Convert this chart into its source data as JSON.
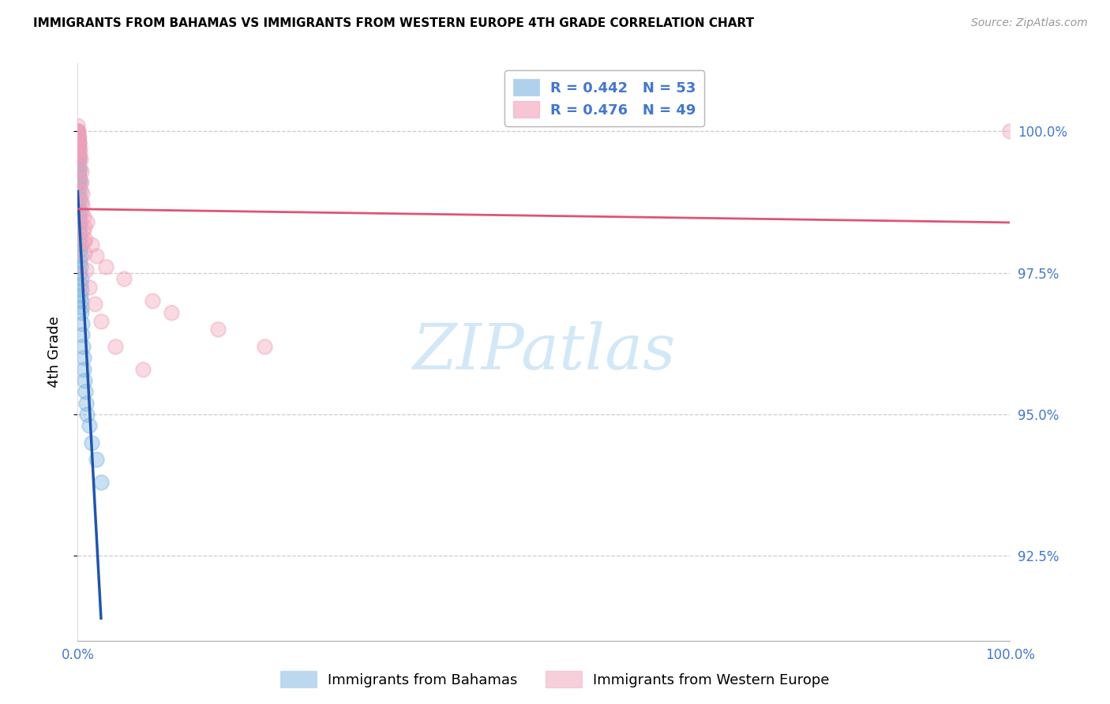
{
  "title": "IMMIGRANTS FROM BAHAMAS VS IMMIGRANTS FROM WESTERN EUROPE 4TH GRADE CORRELATION CHART",
  "source": "Source: ZipAtlas.com",
  "ylabel": "4th Grade",
  "watermark_text": "ZIPatlas",
  "legend_r1": "R = 0.442",
  "legend_n1": "N = 53",
  "legend_r2": "R = 0.476",
  "legend_n2": "N = 49",
  "legend_label1": "Immigrants from Bahamas",
  "legend_label2": "Immigrants from Western Europe",
  "yticks": [
    92.5,
    95.0,
    97.5,
    100.0
  ],
  "ymin": 91.0,
  "ymax": 101.2,
  "xmin": 0.0,
  "xmax": 100.0,
  "bahamas_color": "#7ab3e0",
  "western_color": "#f0a0b8",
  "bahamas_line_color": "#2255aa",
  "western_line_color": "#dd5577",
  "axis_label_color": "#4477cc",
  "grid_color": "#cccccc",
  "title_fontsize": 11,
  "tick_fontsize": 12,
  "legend_fontsize": 12,
  "R_bahamas": 0.442,
  "N_bahamas": 53,
  "R_western": 0.476,
  "N_western": 49,
  "bah_x": [
    0.0,
    0.0,
    0.0,
    0.0,
    0.0,
    0.05,
    0.05,
    0.08,
    0.1,
    0.1,
    0.12,
    0.15,
    0.15,
    0.18,
    0.2,
    0.2,
    0.22,
    0.25,
    0.28,
    0.3,
    0.32,
    0.35,
    0.38,
    0.4,
    0.42,
    0.45,
    0.5,
    0.55,
    0.6,
    0.65,
    0.7,
    0.8,
    0.9,
    1.0,
    1.2,
    1.5,
    2.0,
    2.5,
    0.02,
    0.03,
    0.04,
    0.06,
    0.07,
    0.09,
    0.11,
    0.13,
    0.16,
    0.19,
    0.23,
    0.26,
    0.29,
    0.33,
    0.36
  ],
  "bah_y": [
    100.0,
    99.8,
    99.7,
    99.6,
    99.5,
    99.9,
    99.4,
    99.6,
    99.8,
    99.3,
    99.5,
    99.2,
    99.0,
    98.8,
    99.1,
    98.6,
    98.4,
    98.2,
    98.0,
    97.8,
    97.6,
    97.4,
    97.2,
    97.0,
    96.8,
    96.6,
    96.4,
    96.2,
    96.0,
    95.8,
    95.6,
    95.4,
    95.2,
    95.0,
    94.8,
    94.5,
    94.2,
    93.8,
    99.7,
    99.5,
    99.3,
    99.1,
    98.9,
    98.7,
    98.5,
    98.3,
    98.1,
    97.9,
    97.7,
    97.5,
    97.3,
    97.1,
    96.9
  ],
  "wes_x": [
    0.0,
    0.0,
    0.0,
    0.0,
    0.0,
    0.0,
    0.0,
    0.05,
    0.1,
    0.15,
    0.2,
    0.25,
    0.3,
    0.35,
    0.4,
    0.45,
    0.5,
    0.6,
    0.7,
    0.8,
    1.0,
    1.5,
    2.0,
    3.0,
    5.0,
    8.0,
    10.0,
    15.0,
    20.0,
    0.02,
    0.03,
    0.05,
    0.08,
    0.12,
    0.18,
    0.22,
    0.28,
    0.35,
    0.42,
    0.55,
    0.65,
    0.75,
    0.9,
    1.2,
    1.8,
    2.5,
    4.0,
    7.0,
    100.0
  ],
  "wes_y": [
    100.1,
    100.0,
    100.0,
    99.9,
    99.8,
    99.7,
    99.6,
    100.0,
    99.9,
    99.8,
    99.7,
    99.6,
    99.5,
    99.3,
    99.1,
    98.9,
    98.7,
    98.5,
    98.3,
    98.1,
    98.4,
    98.0,
    97.8,
    97.6,
    97.4,
    97.0,
    96.8,
    96.5,
    96.2,
    99.95,
    99.85,
    99.75,
    99.65,
    99.55,
    99.35,
    99.15,
    98.95,
    98.75,
    98.55,
    98.25,
    98.05,
    97.85,
    97.55,
    97.25,
    96.95,
    96.65,
    96.2,
    95.8,
    100.0
  ]
}
